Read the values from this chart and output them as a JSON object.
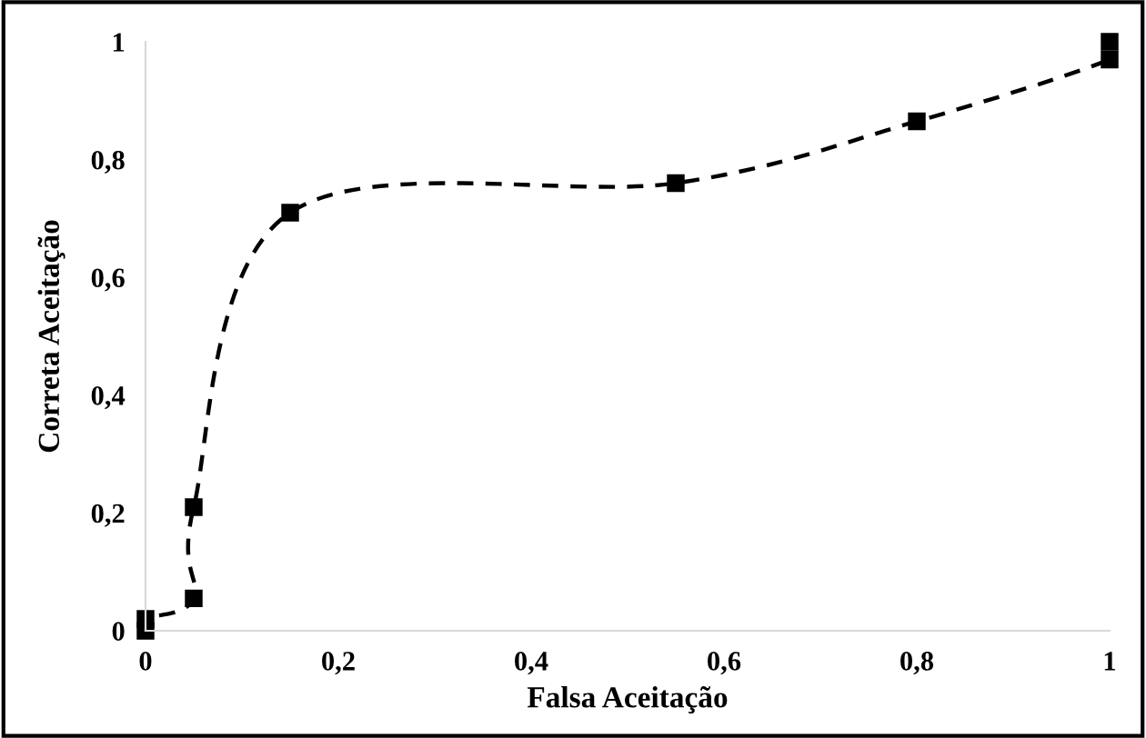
{
  "chart_data": {
    "type": "line",
    "xlabel": "Falsa Aceitação",
    "ylabel": "Correta Aceitação",
    "series": [
      {
        "color": "#000000",
        "x": [
          0,
          0,
          0.05,
          0.05,
          0.15,
          0.55,
          0.8,
          1,
          1
        ],
        "values": [
          0,
          0.02,
          0.055,
          0.21,
          0.71,
          0.76,
          0.865,
          0.97,
          1.0
        ]
      }
    ],
    "xlim": [
      0,
      1
    ],
    "xticks": [
      0,
      {
        "value": 0.2,
        "label": "0,2"
      },
      {
        "value": 0.4,
        "label": "0,4"
      },
      {
        "value": 0.6,
        "label": "0,6"
      },
      {
        "value": 0.8,
        "label": "0,8"
      },
      1
    ],
    "ylim": [
      0,
      1
    ],
    "yticks": [
      0,
      {
        "value": 0.2,
        "label": "0,2"
      },
      {
        "value": 0.4,
        "label": "0,4"
      },
      {
        "value": 0.6,
        "label": "0,6"
      },
      {
        "value": 0.8,
        "label": "0,8"
      },
      1
    ],
    "grid": false,
    "legend": false,
    "marker": "square",
    "line_style": "dashed"
  }
}
